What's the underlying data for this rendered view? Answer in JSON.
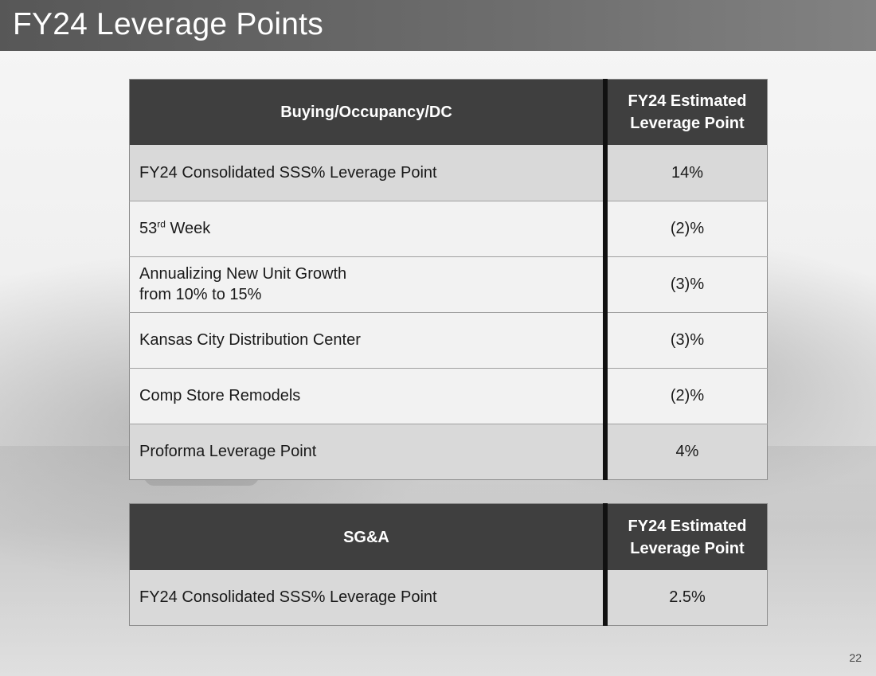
{
  "slide": {
    "title": "FY24 Leverage Points",
    "page_number": "22"
  },
  "table1": {
    "headers": [
      "Buying/Occupancy/DC",
      "FY24 Estimated",
      "Leverage Point"
    ],
    "rows": [
      {
        "label": "FY24 Consolidated SSS% Leverage Point",
        "value": "14%"
      },
      {
        "label_base": "53",
        "label_sup": "rd",
        "label_rest": " Week",
        "value": "(2)%"
      },
      {
        "label_line1": "Annualizing New Unit Growth",
        "label_line2": "from 10% to 15%",
        "value": "(3)%"
      },
      {
        "label": "Kansas City Distribution Center",
        "value": "(3)%"
      },
      {
        "label": "Comp Store Remodels",
        "value": "(2)%"
      },
      {
        "label": "Proforma Leverage Point",
        "value": "4%"
      }
    ]
  },
  "table2": {
    "headers": [
      "SG&A",
      "FY24 Estimated",
      "Leverage Point"
    ],
    "rows": [
      {
        "label": "FY24 Consolidated SSS% Leverage Point",
        "value": "2.5%"
      }
    ]
  }
}
